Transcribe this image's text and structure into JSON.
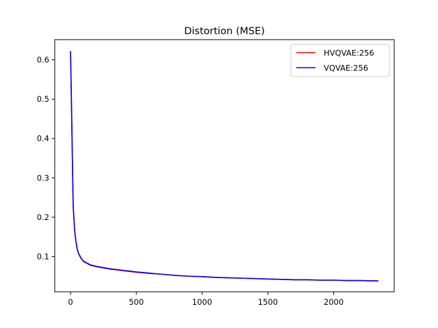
{
  "chart_data": {
    "type": "line",
    "title": "Distortion (MSE)",
    "xlabel": "",
    "ylabel": "",
    "xlim": [
      -120,
      2460
    ],
    "ylim": [
      0.0105,
      0.6513
    ],
    "xticks": [
      0,
      500,
      1000,
      1500,
      2000
    ],
    "yticks": [
      0.1,
      0.2,
      0.3,
      0.4,
      0.5,
      0.6
    ],
    "xtick_labels": [
      "0",
      "500",
      "1000",
      "1500",
      "2000"
    ],
    "ytick_labels": [
      "0.1",
      "0.2",
      "0.3",
      "0.4",
      "0.5",
      "0.6"
    ],
    "legend_position": "top-right",
    "grid": false,
    "series": [
      {
        "name": "HVQVAE:256",
        "color": "#ff0000",
        "x": [
          0,
          10,
          20,
          30,
          40,
          50,
          60,
          80,
          100,
          150,
          200,
          300,
          400,
          500,
          600,
          700,
          800,
          900,
          1000,
          1100,
          1200,
          1300,
          1400,
          1500,
          1600,
          1700,
          1800,
          1900,
          2000,
          2100,
          2200,
          2340
        ],
        "y": [
          0.622,
          0.43,
          0.23,
          0.17,
          0.14,
          0.12,
          0.108,
          0.095,
          0.087,
          0.078,
          0.074,
          0.068,
          0.064,
          0.06,
          0.057,
          0.055,
          0.052,
          0.05,
          0.049,
          0.047,
          0.046,
          0.045,
          0.044,
          0.043,
          0.042,
          0.041,
          0.041,
          0.04,
          0.04,
          0.039,
          0.039,
          0.038
        ]
      },
      {
        "name": "VQVAE:256",
        "color": "#0000ff",
        "x": [
          0,
          10,
          20,
          30,
          40,
          50,
          60,
          80,
          100,
          150,
          200,
          300,
          400,
          500,
          600,
          700,
          800,
          900,
          1000,
          1100,
          1200,
          1300,
          1400,
          1500,
          1600,
          1700,
          1800,
          1900,
          2000,
          2100,
          2200,
          2340
        ],
        "y": [
          0.622,
          0.43,
          0.23,
          0.172,
          0.141,
          0.121,
          0.109,
          0.096,
          0.088,
          0.079,
          0.075,
          0.069,
          0.065,
          0.061,
          0.058,
          0.055,
          0.052,
          0.05,
          0.049,
          0.047,
          0.046,
          0.045,
          0.044,
          0.043,
          0.042,
          0.041,
          0.041,
          0.04,
          0.04,
          0.039,
          0.039,
          0.038
        ]
      }
    ]
  }
}
